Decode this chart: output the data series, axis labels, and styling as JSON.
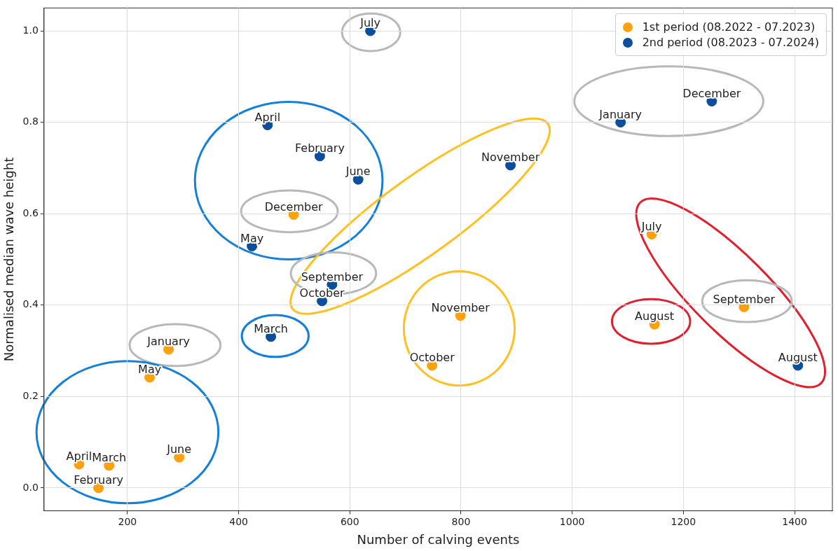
{
  "chart_data": {
    "type": "scatter",
    "xlabel": "Number of calving events",
    "ylabel": "Normalised median wave height",
    "xlim": [
      50,
      1468
    ],
    "ylim": [
      -0.05,
      1.05
    ],
    "xticks": [
      200,
      400,
      600,
      800,
      1000,
      1200,
      1400
    ],
    "yticks": [
      {
        "value": 0,
        "label": "0.0"
      },
      {
        "value": 0.2,
        "label": "0.2"
      },
      {
        "value": 0.4,
        "label": "0.4"
      },
      {
        "value": 0.6,
        "label": "0.6"
      },
      {
        "value": 0.8,
        "label": "0.8"
      },
      {
        "value": 1,
        "label": "1.0"
      }
    ],
    "grid": true,
    "legend": "top right",
    "marker": "circle",
    "series": [
      {
        "name": "1st period (08.2022 - 07.2023)",
        "color": "#ffa10a",
        "x": [
          274,
          240,
          113,
          167,
          293,
          148,
          499,
          799,
          748,
          1143,
          1148,
          1309
        ],
        "values": [
          0.303,
          0.242,
          0.052,
          0.049,
          0.067,
          0,
          0.598,
          0.377,
          0.268,
          0.555,
          0.358,
          0.396
        ],
        "value_labels": [
          "January",
          "May",
          "April",
          "March",
          "June",
          "February",
          "December",
          "November",
          "October",
          "July",
          "August",
          "September"
        ]
      },
      {
        "name": "2nd period (08.2023 - 07.2024)",
        "color": "#0b4f9c",
        "x": [
          637,
          452,
          546,
          615,
          889,
          1087,
          1251,
          424,
          568,
          550,
          458,
          1406
        ],
        "values": [
          1.0,
          0.794,
          0.726,
          0.675,
          0.706,
          0.8,
          0.846,
          0.529,
          0.445,
          0.409,
          0.331,
          0.268
        ],
        "value_labels": [
          "July",
          "April",
          "February",
          "June",
          "November",
          "January",
          "December",
          "May",
          "September",
          "October",
          "March",
          "August"
        ]
      }
    ]
  }
}
